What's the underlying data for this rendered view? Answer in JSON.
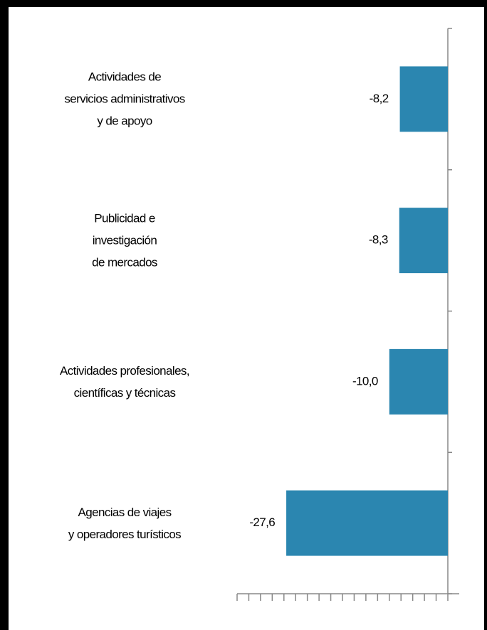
{
  "chart_data": {
    "type": "bar",
    "orientation": "horizontal",
    "categories": [
      "Actividades de\nservicios administrativos\ny de apoyo",
      "Publicidad e\ninvestigación\nde mercados",
      "Actividades profesionales,\ncientíficas y técnicas",
      "Agencias de viajes\ny operadores turísticos"
    ],
    "values": [
      -8.2,
      -8.3,
      -10.0,
      -27.6
    ],
    "value_labels": [
      "-8,2",
      "-8,3",
      "-10,0",
      "-27,6"
    ],
    "color": "#2b86b0",
    "xlim": [
      -36,
      0
    ],
    "xticks": [
      -36,
      -34,
      -32,
      -30,
      -28,
      -26,
      -24,
      -22,
      -20,
      -18,
      -16,
      -14,
      -12,
      -10,
      -8,
      -6,
      -4,
      -2,
      0
    ]
  }
}
